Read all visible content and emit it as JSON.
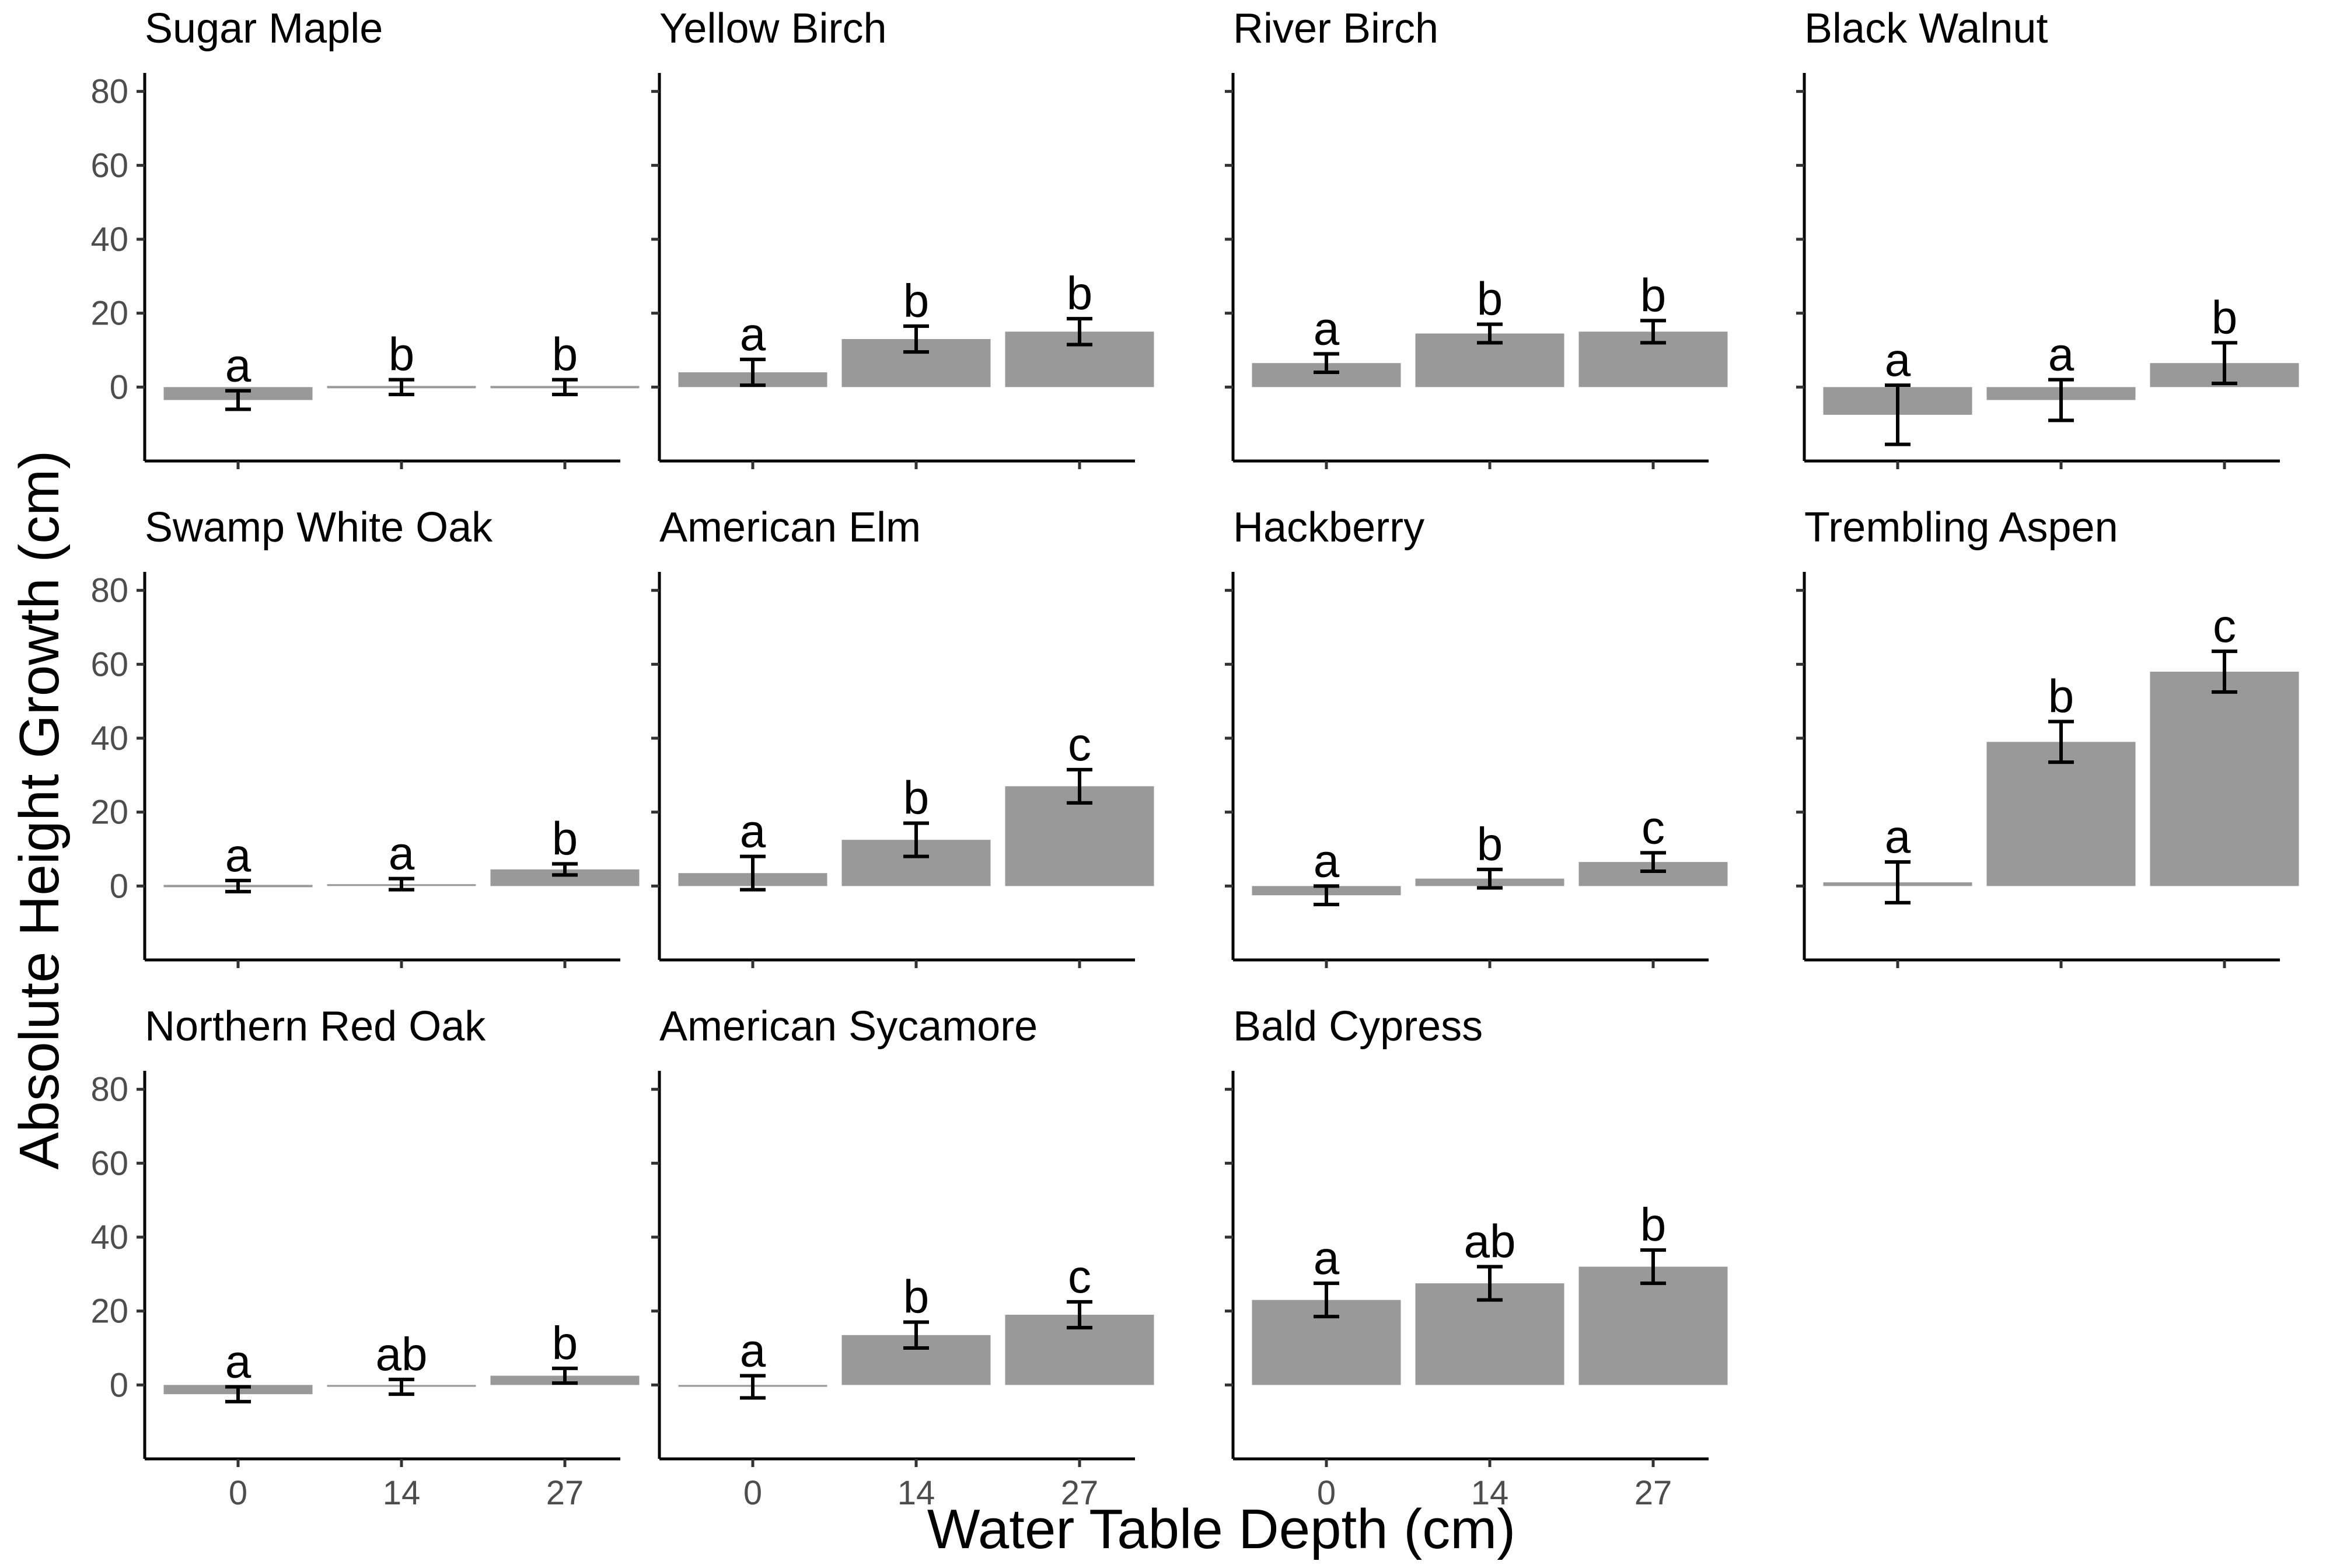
{
  "chart_data": {
    "type": "bar",
    "xlabel": "Water Table Depth (cm)",
    "ylabel": "Absolute Height Growth (cm)",
    "categories": [
      "0",
      "14",
      "27"
    ],
    "ylim": [
      -20,
      85
    ],
    "yticks": [
      0,
      20,
      40,
      60,
      80
    ],
    "bar_color": "#999999",
    "grid": false,
    "panels": [
      {
        "title": "Sugar Maple",
        "values": [
          -3.5,
          0,
          0
        ],
        "errors": [
          2.5,
          2,
          2
        ],
        "letters": [
          "a",
          "b",
          "b"
        ]
      },
      {
        "title": "Yellow Birch",
        "values": [
          4,
          13,
          15
        ],
        "errors": [
          3.5,
          3.5,
          3.5
        ],
        "letters": [
          "a",
          "b",
          "b"
        ]
      },
      {
        "title": "River Birch",
        "values": [
          6.5,
          14.5,
          15
        ],
        "errors": [
          2.5,
          2.5,
          3
        ],
        "letters": [
          "a",
          "b",
          "b"
        ]
      },
      {
        "title": "Black Walnut",
        "values": [
          -7.5,
          -3.5,
          6.5
        ],
        "errors": [
          8,
          5.5,
          5.5
        ],
        "letters": [
          "a",
          "a",
          "b"
        ]
      },
      {
        "title": "Swamp White Oak",
        "values": [
          0,
          0.5,
          4.5
        ],
        "errors": [
          1.5,
          1.5,
          1.5
        ],
        "letters": [
          "a",
          "a",
          "b"
        ]
      },
      {
        "title": "American Elm",
        "values": [
          3.5,
          12.5,
          27
        ],
        "errors": [
          4.5,
          4.5,
          4.5
        ],
        "letters": [
          "a",
          "b",
          "c"
        ]
      },
      {
        "title": "Hackberry",
        "values": [
          -2.5,
          2,
          6.5
        ],
        "errors": [
          2.5,
          2.5,
          2.5
        ],
        "letters": [
          "a",
          "b",
          "c"
        ]
      },
      {
        "title": "Trembling Aspen",
        "values": [
          1,
          39,
          58
        ],
        "errors": [
          5.5,
          5.5,
          5.5
        ],
        "letters": [
          "a",
          "b",
          "c"
        ]
      },
      {
        "title": "Northern Red Oak",
        "values": [
          -2.5,
          -0.5,
          2.5
        ],
        "errors": [
          2,
          2,
          2
        ],
        "letters": [
          "a",
          "ab",
          "b"
        ]
      },
      {
        "title": "American Sycamore",
        "values": [
          -0.5,
          13.5,
          19
        ],
        "errors": [
          3,
          3.5,
          3.5
        ],
        "letters": [
          "a",
          "b",
          "c"
        ]
      },
      {
        "title": "Bald Cypress",
        "values": [
          23,
          27.5,
          32
        ],
        "errors": [
          4.5,
          4.5,
          4.5
        ],
        "letters": [
          "a",
          "ab",
          "b"
        ]
      }
    ]
  }
}
